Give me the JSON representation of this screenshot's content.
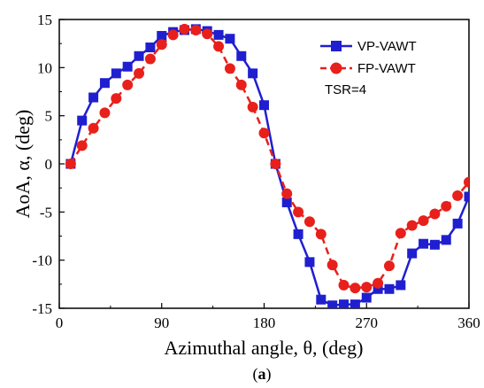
{
  "chart_data": {
    "type": "line",
    "xlabel": "Azimuthal angle, θ, (deg)",
    "ylabel": "AoA, α, (deg)",
    "xlim": [
      0,
      360
    ],
    "ylim": [
      -15,
      15
    ],
    "xticks": [
      0,
      90,
      180,
      270,
      360
    ],
    "yticks": [
      -15,
      -10,
      -5,
      0,
      5,
      10,
      15
    ],
    "grid": false,
    "legend_position": "top-right",
    "annotation": "TSR=4",
    "caption_prefix": "(",
    "caption_letter": "a",
    "caption_suffix": ")",
    "series": [
      {
        "name": "VP-VAWT",
        "color": "#1f1fd0",
        "marker": "square",
        "line_style": "solid",
        "x": [
          10,
          20,
          30,
          40,
          50,
          60,
          70,
          80,
          90,
          100,
          110,
          120,
          130,
          140,
          150,
          160,
          170,
          180,
          190,
          200,
          210,
          220,
          230,
          240,
          250,
          260,
          270,
          280,
          290,
          300,
          310,
          320,
          330,
          340,
          350,
          360
        ],
        "y": [
          0,
          4.5,
          6.9,
          8.4,
          9.4,
          10.1,
          11.2,
          12.1,
          13.3,
          13.7,
          13.9,
          14.0,
          13.8,
          13.4,
          13.0,
          11.2,
          9.4,
          6.1,
          0,
          -4.0,
          -7.3,
          -10.2,
          -14.1,
          -14.7,
          -14.6,
          -14.6,
          -13.9,
          -13.0,
          -13.0,
          -12.6,
          -9.3,
          -8.3,
          -8.4,
          -7.9,
          -6.2,
          -3.4
        ]
      },
      {
        "name": "FP-VAWT",
        "color": "#e8201b",
        "marker": "circle",
        "line_style": "dashed",
        "x": [
          10,
          20,
          30,
          40,
          50,
          60,
          70,
          80,
          90,
          100,
          110,
          120,
          130,
          140,
          150,
          160,
          170,
          180,
          190,
          200,
          210,
          220,
          230,
          240,
          250,
          260,
          270,
          280,
          290,
          300,
          310,
          320,
          330,
          340,
          350,
          360
        ],
        "y": [
          0,
          1.9,
          3.7,
          5.3,
          6.8,
          8.2,
          9.4,
          10.9,
          12.4,
          13.4,
          14.0,
          13.9,
          13.5,
          12.2,
          9.9,
          8.2,
          5.9,
          3.2,
          0,
          -3.1,
          -5.0,
          -6.0,
          -7.3,
          -10.5,
          -12.6,
          -12.9,
          -12.8,
          -12.4,
          -10.6,
          -7.2,
          -6.4,
          -5.9,
          -5.2,
          -4.4,
          -3.3,
          -1.9
        ]
      }
    ]
  }
}
